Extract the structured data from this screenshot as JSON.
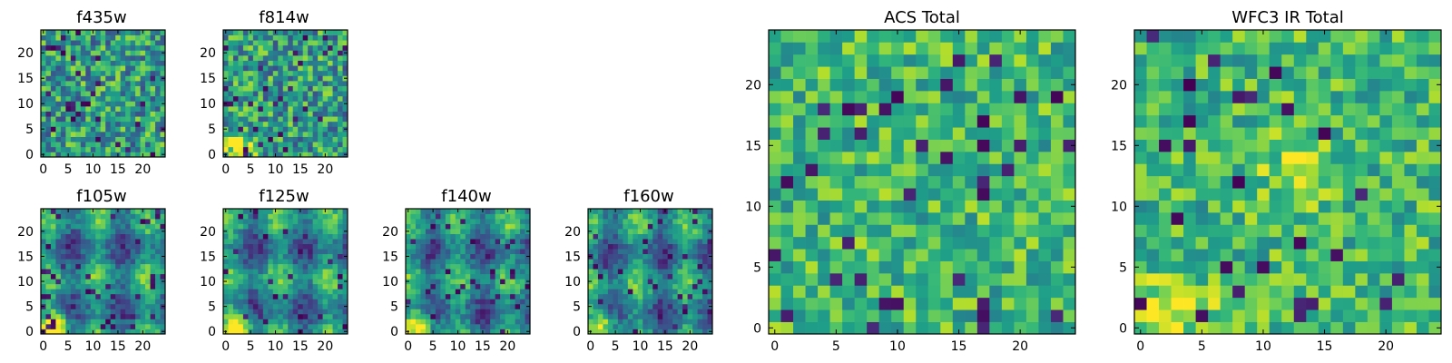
{
  "chart_data": [
    {
      "type": "heatmap",
      "title": "f435w",
      "pixels": 25,
      "xlim": [
        -0.5,
        24.5
      ],
      "ylim": [
        -0.5,
        24.5
      ],
      "xticks": [
        0,
        5,
        10,
        15,
        20
      ],
      "yticks": [
        0,
        5,
        10,
        15,
        20
      ],
      "colormap": "viridis",
      "seed": 11,
      "pattern": "noisy"
    },
    {
      "type": "heatmap",
      "title": "f814w",
      "pixels": 25,
      "xlim": [
        -0.5,
        24.5
      ],
      "ylim": [
        -0.5,
        24.5
      ],
      "xticks": [
        0,
        5,
        10,
        15,
        20
      ],
      "yticks": [
        0,
        5,
        10,
        15,
        20
      ],
      "colormap": "viridis",
      "seed": 23,
      "pattern": "noisy-source"
    },
    {
      "type": "heatmap",
      "title": "f105w",
      "pixels": 25,
      "xlim": [
        -0.5,
        24.5
      ],
      "ylim": [
        -0.5,
        24.5
      ],
      "xticks": [
        0,
        5,
        10,
        15,
        20
      ],
      "yticks": [
        0,
        5,
        10,
        15,
        20
      ],
      "colormap": "viridis",
      "seed": 37,
      "pattern": "smooth-source"
    },
    {
      "type": "heatmap",
      "title": "f125w",
      "pixels": 25,
      "xlim": [
        -0.5,
        24.5
      ],
      "ylim": [
        -0.5,
        24.5
      ],
      "xticks": [
        0,
        5,
        10,
        15,
        20
      ],
      "yticks": [
        0,
        5,
        10,
        15,
        20
      ],
      "colormap": "viridis",
      "seed": 41,
      "pattern": "smooth-source"
    },
    {
      "type": "heatmap",
      "title": "f140w",
      "pixels": 25,
      "xlim": [
        -0.5,
        24.5
      ],
      "ylim": [
        -0.5,
        24.5
      ],
      "xticks": [
        0,
        5,
        10,
        15,
        20
      ],
      "yticks": [
        0,
        5,
        10,
        15,
        20
      ],
      "colormap": "viridis",
      "seed": 53,
      "pattern": "smooth-source"
    },
    {
      "type": "heatmap",
      "title": "f160w",
      "pixels": 25,
      "xlim": [
        -0.5,
        24.5
      ],
      "ylim": [
        -0.5,
        24.5
      ],
      "xticks": [
        0,
        5,
        10,
        15,
        20
      ],
      "yticks": [
        0,
        5,
        10,
        15,
        20
      ],
      "colormap": "viridis",
      "seed": 67,
      "pattern": "smooth-source"
    },
    {
      "type": "heatmap",
      "title": "ACS Total",
      "pixels": 25,
      "xlim": [
        -0.5,
        24.5
      ],
      "ylim": [
        -0.5,
        24.5
      ],
      "xticks": [
        0,
        5,
        10,
        15,
        20
      ],
      "yticks": [
        0,
        5,
        10,
        15,
        20
      ],
      "colormap": "viridis",
      "seed": 79,
      "pattern": "bright"
    },
    {
      "type": "heatmap",
      "title": "WFC3 IR Total",
      "pixels": 25,
      "xlim": [
        -0.5,
        24.5
      ],
      "ylim": [
        -0.5,
        24.5
      ],
      "xticks": [
        0,
        5,
        10,
        15,
        20
      ],
      "yticks": [
        0,
        5,
        10,
        15,
        20
      ],
      "colormap": "viridis",
      "seed": 97,
      "pattern": "bright-source"
    }
  ]
}
